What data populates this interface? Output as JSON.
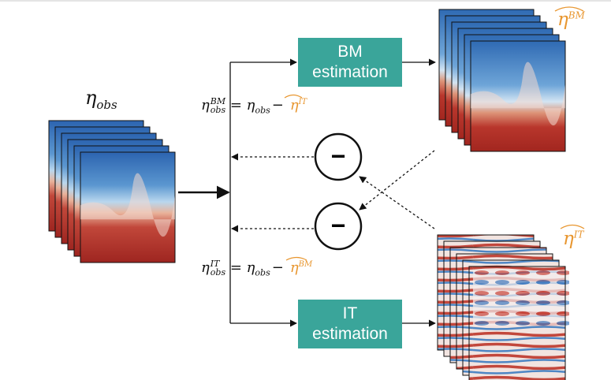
{
  "boxes": {
    "bm": {
      "line1": "BM",
      "line2": "estimation"
    },
    "it": {
      "line1": "IT",
      "line2": "estimation"
    }
  },
  "labels": {
    "obs_symbol": "η",
    "obs_sub": "obs",
    "bm_out_symbol": "η",
    "bm_out_sup": "BM",
    "it_out_symbol": "η",
    "it_out_sup": "IT",
    "eq_bm": {
      "lhs": "η",
      "lhs_sup": "BM",
      "lhs_sub": "obs",
      "mid": " = η",
      "mid_sub": "obs",
      "minus": "−",
      "rhs": "η",
      "rhs_sup": "IT"
    },
    "eq_it": {
      "lhs": "η",
      "lhs_sup": "IT",
      "lhs_sub": "obs",
      "mid": " = η",
      "mid_sub": "obs",
      "minus": "−",
      "rhs": "η",
      "rhs_sup": "BM"
    }
  },
  "operators": {
    "upper": "−",
    "lower": "−"
  },
  "colors": {
    "box": "#3aa59a",
    "accent": "#e8962f",
    "red": "#b2302a",
    "blue": "#2f6db5"
  }
}
